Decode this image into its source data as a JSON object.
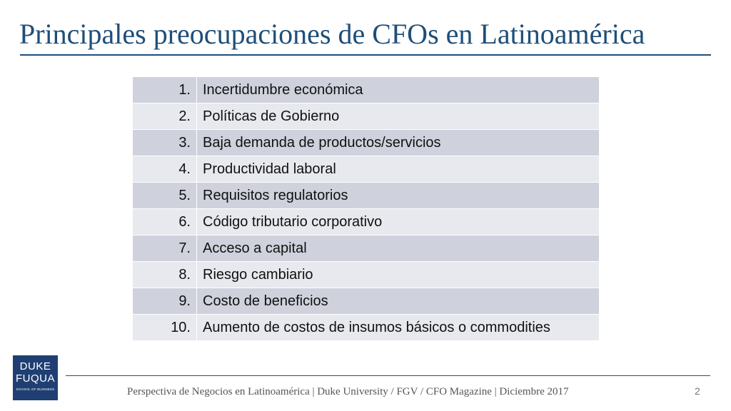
{
  "slide": {
    "title": "Principales preocupaciones de CFOs en Latinoamérica",
    "page_number": "2"
  },
  "concerns": [
    {
      "rank": "1.",
      "label": "Incertidumbre económica"
    },
    {
      "rank": "2.",
      "label": "Políticas de Gobierno"
    },
    {
      "rank": "3.",
      "label": "Baja demanda de productos/servicios"
    },
    {
      "rank": "4.",
      "label": "Productividad laboral"
    },
    {
      "rank": "5.",
      "label": "Requisitos regulatorios"
    },
    {
      "rank": "6.",
      "label": "Código tributario corporativo"
    },
    {
      "rank": "7.",
      "label": "Acceso a capital"
    },
    {
      "rank": "8.",
      "label": "Riesgo cambiario"
    },
    {
      "rank": "9.",
      "label": "Costo de beneficios"
    },
    {
      "rank": "10.",
      "label": "Aumento de costos de insumos básicos o commodities"
    }
  ],
  "logo": {
    "line1": "DUKE",
    "line2": "FUQUA",
    "line3": "SCHOOL OF BUSINESS"
  },
  "footer": {
    "text": "Perspectiva de Negocios en Latinoamérica | Duke University / FGV / CFO Magazine | Diciembre 2017"
  },
  "colors": {
    "title": "#1f4e79",
    "row_dark": "#cfd2dc",
    "row_light": "#e8e9ee",
    "logo_bg": "#1f3f73"
  }
}
